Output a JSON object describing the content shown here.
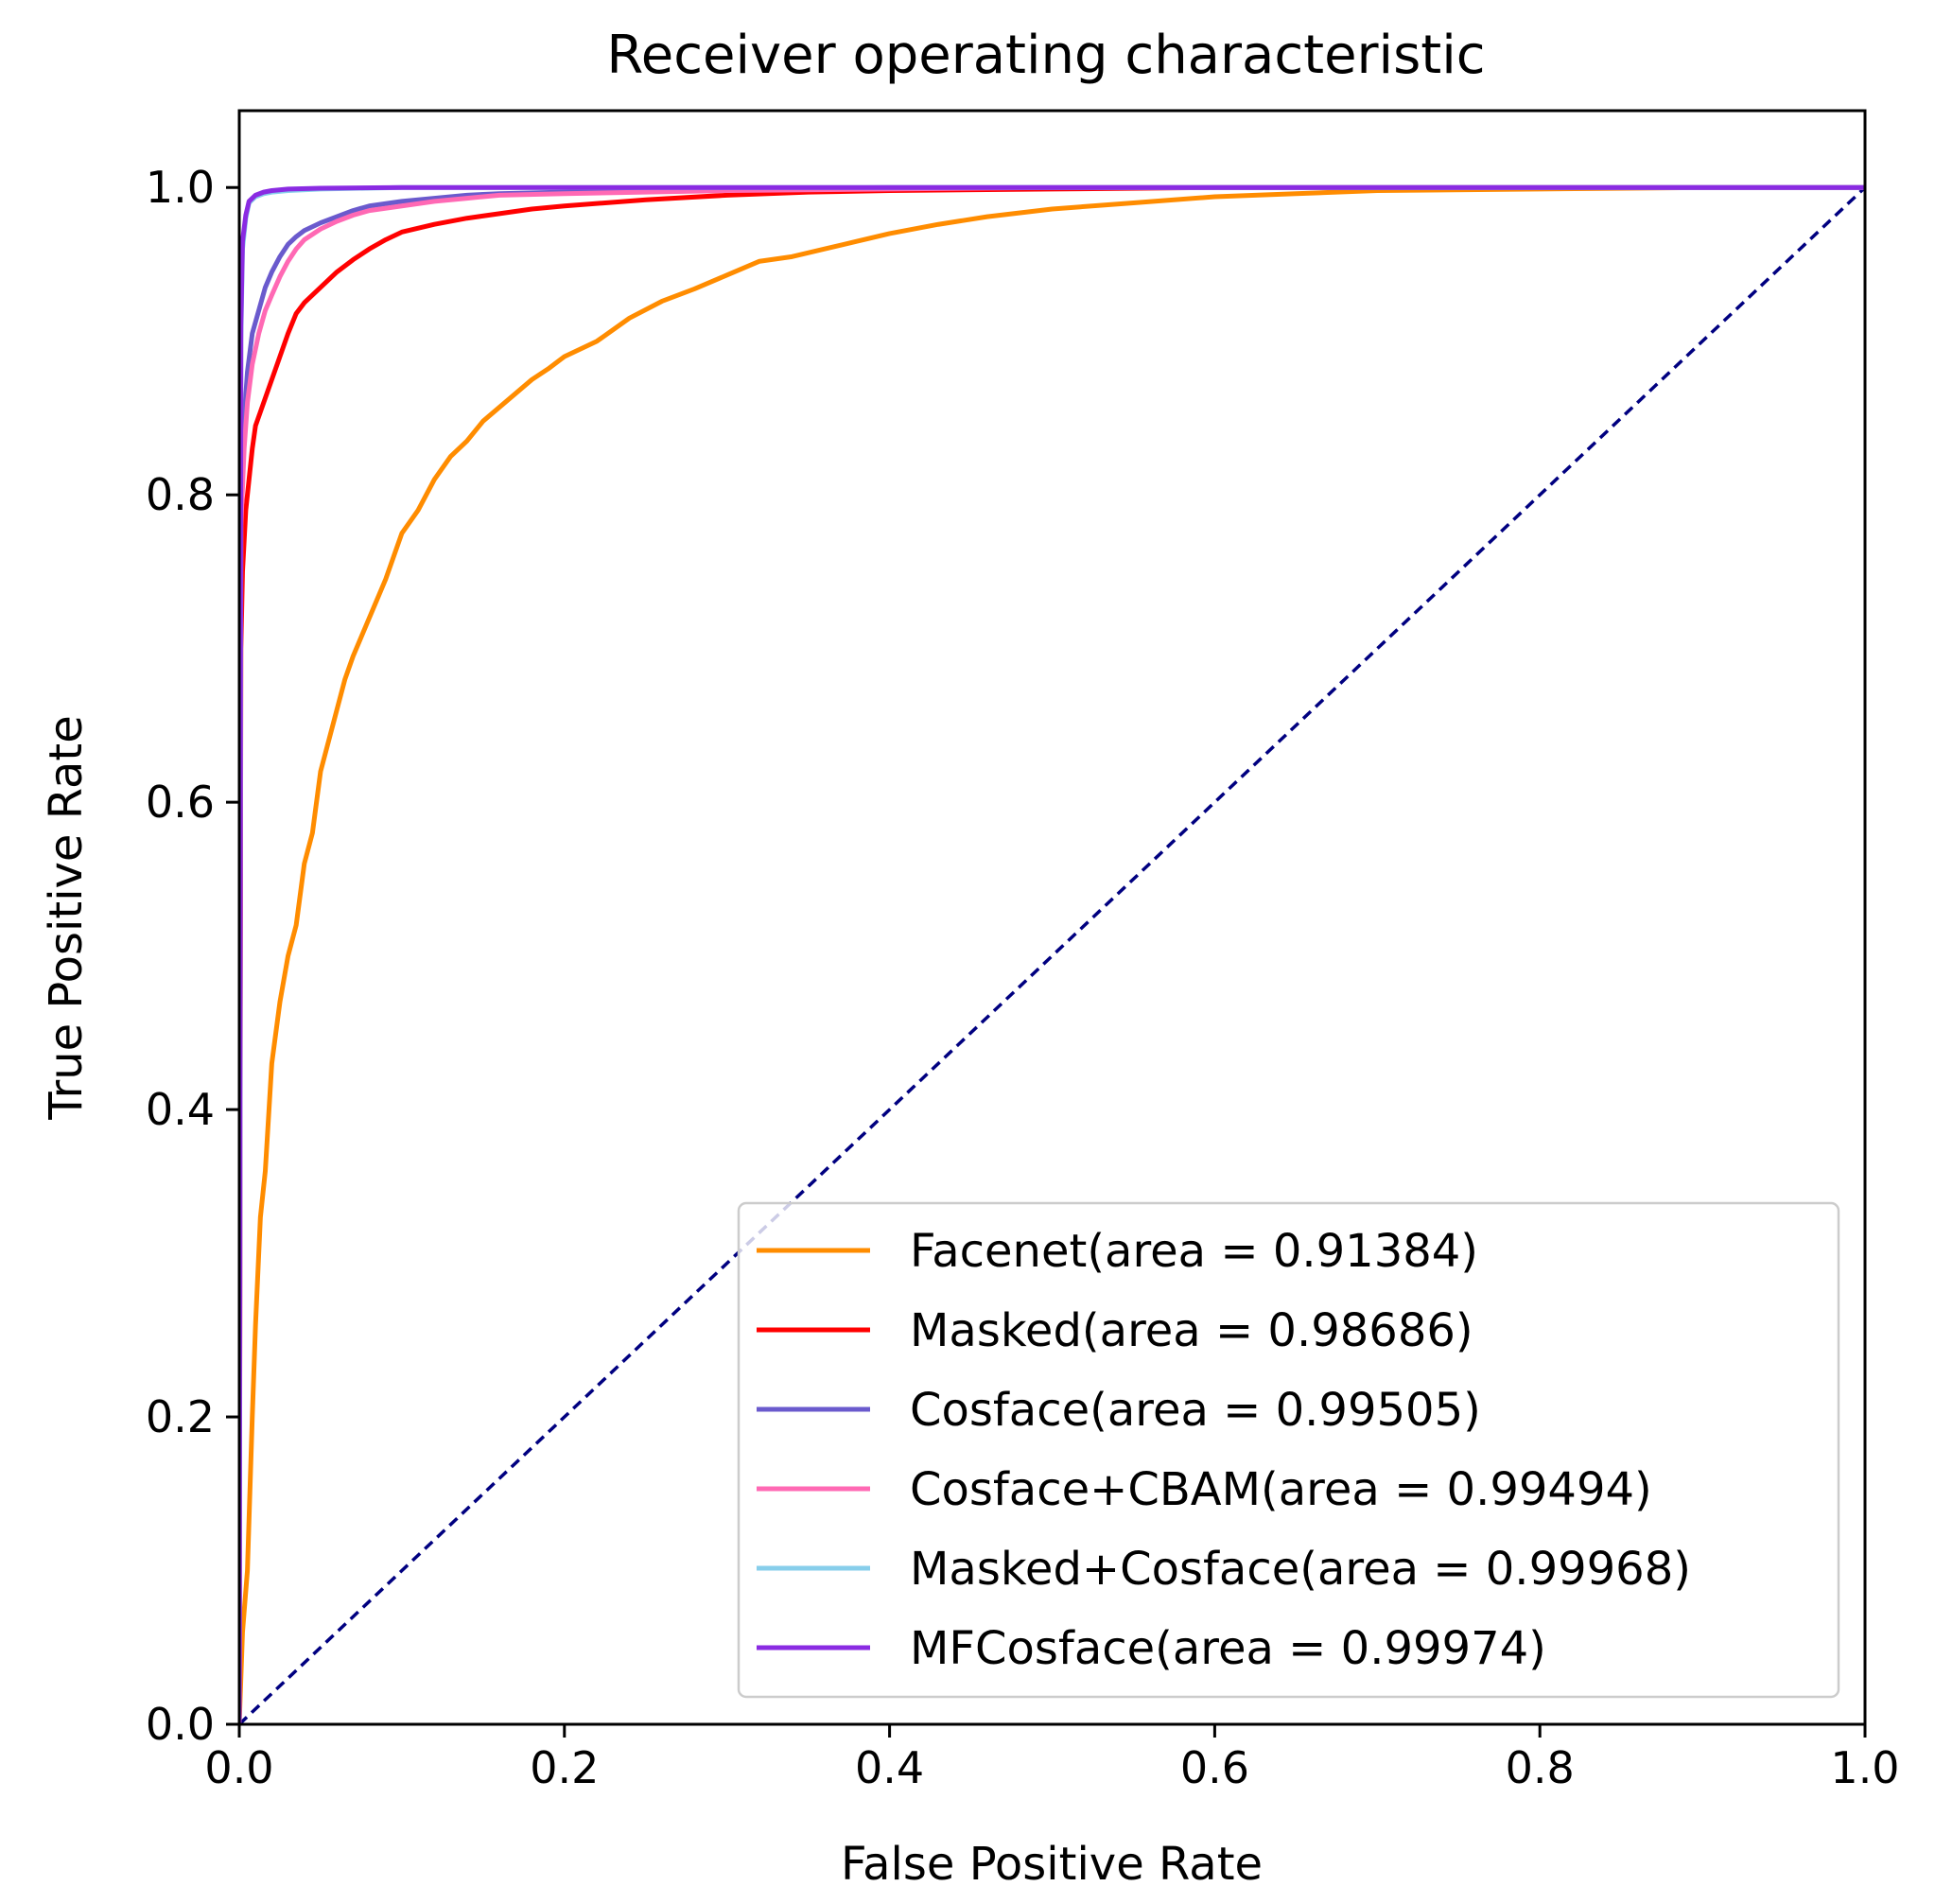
{
  "chart_data": {
    "type": "line",
    "title": "Receiver operating characteristic",
    "xlabel": "False Positive Rate",
    "ylabel": "True Positive Rate",
    "xlim": [
      0.0,
      1.0
    ],
    "ylim": [
      0.0,
      1.05
    ],
    "grid": false,
    "legend_position": "lower-right",
    "x_ticks": [
      0.0,
      0.2,
      0.4,
      0.6,
      0.8,
      1.0
    ],
    "x_tick_labels": [
      "0.0",
      "0.2",
      "0.4",
      "0.6",
      "0.8",
      "1.0"
    ],
    "y_ticks": [
      0.0,
      0.2,
      0.4,
      0.6,
      0.8,
      1.0
    ],
    "y_tick_labels": [
      "0.0",
      "0.2",
      "0.4",
      "0.6",
      "0.8",
      "1.0"
    ],
    "diagonal": {
      "x": [
        0.0,
        1.0
      ],
      "y": [
        0.0,
        1.0
      ],
      "color": "#000080",
      "style": "dashed"
    },
    "series": [
      {
        "name": "Facenet(area = 0.91384)",
        "color": "#ff8c00",
        "x": [
          0.0,
          0.002,
          0.005,
          0.008,
          0.01,
          0.013,
          0.016,
          0.02,
          0.025,
          0.03,
          0.035,
          0.04,
          0.045,
          0.05,
          0.055,
          0.06,
          0.065,
          0.07,
          0.08,
          0.09,
          0.095,
          0.1,
          0.11,
          0.12,
          0.13,
          0.14,
          0.15,
          0.16,
          0.17,
          0.18,
          0.19,
          0.2,
          0.22,
          0.24,
          0.26,
          0.28,
          0.3,
          0.32,
          0.34,
          0.36,
          0.38,
          0.4,
          0.43,
          0.46,
          0.5,
          0.55,
          0.6,
          0.65,
          0.7,
          0.8,
          0.9,
          1.0
        ],
        "y": [
          0.0,
          0.06,
          0.1,
          0.2,
          0.26,
          0.33,
          0.36,
          0.43,
          0.47,
          0.5,
          0.52,
          0.56,
          0.58,
          0.62,
          0.64,
          0.66,
          0.68,
          0.695,
          0.72,
          0.745,
          0.76,
          0.775,
          0.79,
          0.81,
          0.825,
          0.835,
          0.848,
          0.857,
          0.866,
          0.875,
          0.882,
          0.89,
          0.9,
          0.915,
          0.926,
          0.934,
          0.943,
          0.952,
          0.955,
          0.96,
          0.965,
          0.97,
          0.976,
          0.981,
          0.986,
          0.99,
          0.994,
          0.996,
          0.998,
          0.999,
          1.0,
          1.0
        ]
      },
      {
        "name": "Masked(area = 0.98686)",
        "color": "#ff0000",
        "x": [
          0.0,
          0.001,
          0.002,
          0.004,
          0.006,
          0.008,
          0.01,
          0.015,
          0.02,
          0.025,
          0.03,
          0.035,
          0.04,
          0.05,
          0.06,
          0.07,
          0.08,
          0.09,
          0.1,
          0.12,
          0.14,
          0.16,
          0.18,
          0.2,
          0.25,
          0.3,
          0.35,
          0.4,
          0.5,
          0.6,
          0.8,
          1.0
        ],
        "y": [
          0.0,
          0.7,
          0.75,
          0.79,
          0.81,
          0.83,
          0.845,
          0.86,
          0.875,
          0.89,
          0.905,
          0.918,
          0.925,
          0.935,
          0.945,
          0.953,
          0.96,
          0.966,
          0.971,
          0.976,
          0.98,
          0.983,
          0.986,
          0.988,
          0.992,
          0.995,
          0.997,
          0.998,
          0.999,
          1.0,
          1.0,
          1.0
        ]
      },
      {
        "name": "Cosface(area = 0.99505)",
        "color": "#6a5acd",
        "x": [
          0.0,
          0.001,
          0.003,
          0.005,
          0.008,
          0.012,
          0.016,
          0.02,
          0.025,
          0.03,
          0.035,
          0.04,
          0.05,
          0.06,
          0.07,
          0.08,
          0.1,
          0.12,
          0.14,
          0.16,
          0.2,
          0.25,
          0.3,
          0.4,
          0.5,
          1.0
        ],
        "y": [
          0.0,
          0.8,
          0.85,
          0.88,
          0.905,
          0.92,
          0.935,
          0.945,
          0.955,
          0.963,
          0.968,
          0.972,
          0.977,
          0.981,
          0.985,
          0.988,
          0.991,
          0.993,
          0.995,
          0.996,
          0.997,
          0.998,
          0.999,
          1.0,
          1.0,
          1.0
        ]
      },
      {
        "name": "Cosface+CBAM(area = 0.99494)",
        "color": "#ff69b4",
        "x": [
          0.0,
          0.001,
          0.003,
          0.005,
          0.008,
          0.012,
          0.016,
          0.02,
          0.025,
          0.03,
          0.035,
          0.04,
          0.05,
          0.06,
          0.07,
          0.08,
          0.1,
          0.12,
          0.14,
          0.16,
          0.2,
          0.25,
          0.3,
          0.4,
          0.5,
          1.0
        ],
        "y": [
          0.0,
          0.78,
          0.83,
          0.86,
          0.885,
          0.905,
          0.92,
          0.93,
          0.942,
          0.952,
          0.96,
          0.966,
          0.973,
          0.978,
          0.982,
          0.985,
          0.988,
          0.991,
          0.993,
          0.995,
          0.996,
          0.997,
          0.998,
          0.999,
          1.0,
          1.0
        ]
      },
      {
        "name": "Masked+Cosface(area = 0.99968)",
        "color": "#87ceeb",
        "x": [
          0.0,
          0.001,
          0.002,
          0.004,
          0.006,
          0.01,
          0.015,
          0.02,
          0.03,
          0.05,
          0.1,
          0.2,
          1.0
        ],
        "y": [
          0.0,
          0.9,
          0.96,
          0.98,
          0.99,
          0.994,
          0.996,
          0.997,
          0.998,
          0.999,
          1.0,
          1.0,
          1.0
        ]
      },
      {
        "name": "MFCosface(area = 0.99974)",
        "color": "#8a2be2",
        "x": [
          0.0,
          0.001,
          0.002,
          0.004,
          0.006,
          0.01,
          0.015,
          0.02,
          0.03,
          0.05,
          0.1,
          0.2,
          1.0
        ],
        "y": [
          0.0,
          0.91,
          0.965,
          0.982,
          0.991,
          0.995,
          0.997,
          0.998,
          0.999,
          0.9995,
          1.0,
          1.0,
          1.0
        ]
      }
    ]
  }
}
